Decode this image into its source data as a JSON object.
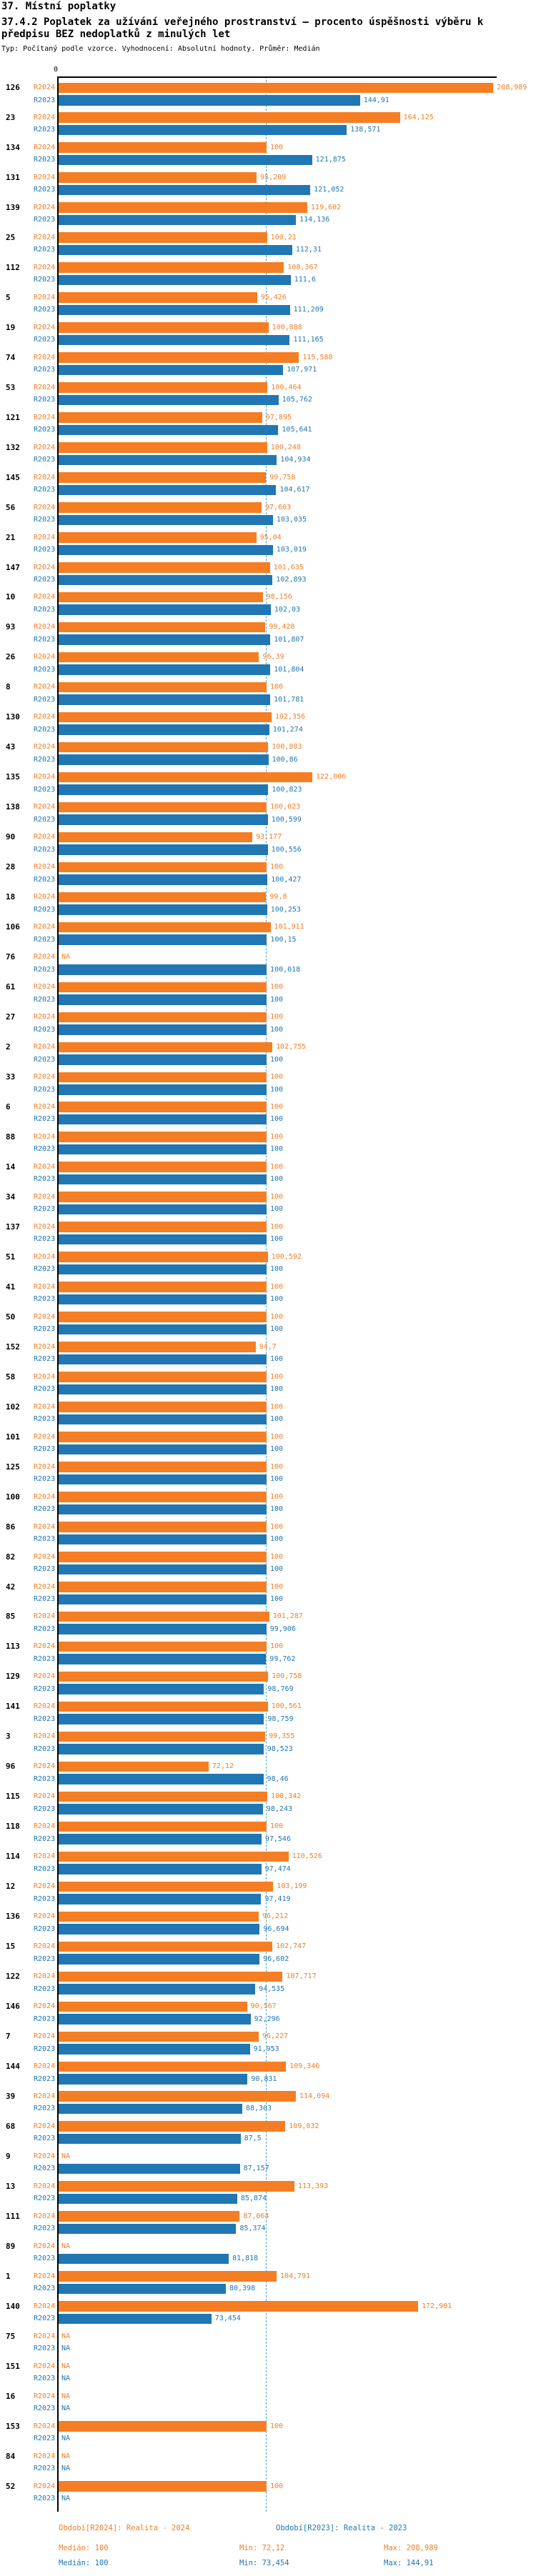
{
  "header": {
    "line1": "37. Místní poplatky",
    "line2": "37.4.2 Poplatek za užívání veřejného prostranství – procento úspěšnosti výběru k",
    "line3": "předpisu BEZ nedoplatků z minulých let",
    "line4": "Typ: Počítaný podle vzorce. Vyhodnocení: Absolutní hodnoty. Průměr: Medián"
  },
  "chart_data": {
    "type": "bar",
    "orientation": "horizontal",
    "decimal_style": "czech-comma",
    "na_text": "NA",
    "series_labels": [
      "R2024",
      "R2023"
    ],
    "colors": {
      "r2024": "#F57E25",
      "r2023": "#2077B4",
      "median_line": "#4BA3C7",
      "axis": "#000000"
    },
    "axis": {
      "origin_label": "0",
      "median_value": 100,
      "xlim": [
        0,
        214
      ],
      "grid": false
    },
    "groups": [
      {
        "id": "126",
        "r2024": "208,989",
        "r2023": "144,91"
      },
      {
        "id": "23",
        "r2024": "164,125",
        "r2023": "138,571"
      },
      {
        "id": "134",
        "r2024": "100",
        "r2023": "121,875"
      },
      {
        "id": "131",
        "r2024": "95,209",
        "r2023": "121,052"
      },
      {
        "id": "139",
        "r2024": "119,602",
        "r2023": "114,136"
      },
      {
        "id": "25",
        "r2024": "100,21",
        "r2023": "112,31"
      },
      {
        "id": "112",
        "r2024": "108,367",
        "r2023": "111,6"
      },
      {
        "id": "5",
        "r2024": "95,426",
        "r2023": "111,209"
      },
      {
        "id": "19",
        "r2024": "100,888",
        "r2023": "111,165"
      },
      {
        "id": "74",
        "r2024": "115,588",
        "r2023": "107,971"
      },
      {
        "id": "53",
        "r2024": "100,464",
        "r2023": "105,762"
      },
      {
        "id": "121",
        "r2024": "97,895",
        "r2023": "105,641"
      },
      {
        "id": "132",
        "r2024": "100,248",
        "r2023": "104,934"
      },
      {
        "id": "145",
        "r2024": "99,758",
        "r2023": "104,617"
      },
      {
        "id": "56",
        "r2024": "97,603",
        "r2023": "103,035"
      },
      {
        "id": "21",
        "r2024": "95,04",
        "r2023": "103,019"
      },
      {
        "id": "147",
        "r2024": "101,635",
        "r2023": "102,893"
      },
      {
        "id": "10",
        "r2024": "98,156",
        "r2023": "102,03"
      },
      {
        "id": "93",
        "r2024": "99,428",
        "r2023": "101,807"
      },
      {
        "id": "26",
        "r2024": "96,39",
        "r2023": "101,804"
      },
      {
        "id": "8",
        "r2024": "100",
        "r2023": "101,781"
      },
      {
        "id": "130",
        "r2024": "102,356",
        "r2023": "101,274"
      },
      {
        "id": "43",
        "r2024": "100,803",
        "r2023": "100,86"
      },
      {
        "id": "135",
        "r2024": "122,006",
        "r2023": "100,823"
      },
      {
        "id": "138",
        "r2024": "100,023",
        "r2023": "100,599"
      },
      {
        "id": "90",
        "r2024": "93,177",
        "r2023": "100,556"
      },
      {
        "id": "28",
        "r2024": "100",
        "r2023": "100,427"
      },
      {
        "id": "18",
        "r2024": "99,8",
        "r2023": "100,253"
      },
      {
        "id": "106",
        "r2024": "101,911",
        "r2023": "100,15"
      },
      {
        "id": "76",
        "r2024": "NA",
        "r2023": "100,018"
      },
      {
        "id": "61",
        "r2024": "100",
        "r2023": "100"
      },
      {
        "id": "27",
        "r2024": "100",
        "r2023": "100"
      },
      {
        "id": "2",
        "r2024": "102,755",
        "r2023": "100"
      },
      {
        "id": "33",
        "r2024": "100",
        "r2023": "100"
      },
      {
        "id": "6",
        "r2024": "100",
        "r2023": "100"
      },
      {
        "id": "88",
        "r2024": "100",
        "r2023": "100"
      },
      {
        "id": "14",
        "r2024": "100",
        "r2023": "100"
      },
      {
        "id": "34",
        "r2024": "100",
        "r2023": "100"
      },
      {
        "id": "137",
        "r2024": "100",
        "r2023": "100"
      },
      {
        "id": "51",
        "r2024": "100,592",
        "r2023": "100"
      },
      {
        "id": "41",
        "r2024": "100",
        "r2023": "100"
      },
      {
        "id": "50",
        "r2024": "100",
        "r2023": "100"
      },
      {
        "id": "152",
        "r2024": "94,7",
        "r2023": "100"
      },
      {
        "id": "58",
        "r2024": "100",
        "r2023": "100"
      },
      {
        "id": "102",
        "r2024": "100",
        "r2023": "100"
      },
      {
        "id": "101",
        "r2024": "100",
        "r2023": "100"
      },
      {
        "id": "125",
        "r2024": "100",
        "r2023": "100"
      },
      {
        "id": "100",
        "r2024": "100",
        "r2023": "100"
      },
      {
        "id": "86",
        "r2024": "100",
        "r2023": "100"
      },
      {
        "id": "82",
        "r2024": "100",
        "r2023": "100"
      },
      {
        "id": "42",
        "r2024": "100",
        "r2023": "100"
      },
      {
        "id": "85",
        "r2024": "101,287",
        "r2023": "99,906"
      },
      {
        "id": "113",
        "r2024": "100",
        "r2023": "99,762"
      },
      {
        "id": "129",
        "r2024": "100,758",
        "r2023": "98,769"
      },
      {
        "id": "141",
        "r2024": "100,561",
        "r2023": "98,759"
      },
      {
        "id": "3",
        "r2024": "99,355",
        "r2023": "98,523"
      },
      {
        "id": "96",
        "r2024": "72,12",
        "r2023": "98,46"
      },
      {
        "id": "115",
        "r2024": "100,342",
        "r2023": "98,243"
      },
      {
        "id": "118",
        "r2024": "100",
        "r2023": "97,546"
      },
      {
        "id": "114",
        "r2024": "110,526",
        "r2023": "97,474"
      },
      {
        "id": "12",
        "r2024": "103,199",
        "r2023": "97,419"
      },
      {
        "id": "136",
        "r2024": "96,212",
        "r2023": "96,694"
      },
      {
        "id": "15",
        "r2024": "102,747",
        "r2023": "96,602"
      },
      {
        "id": "122",
        "r2024": "107,717",
        "r2023": "94,535"
      },
      {
        "id": "146",
        "r2024": "90,567",
        "r2023": "92,296"
      },
      {
        "id": "7",
        "r2024": "96,227",
        "r2023": "91,953"
      },
      {
        "id": "144",
        "r2024": "109,346",
        "r2023": "90,831"
      },
      {
        "id": "39",
        "r2024": "114,094",
        "r2023": "88,303"
      },
      {
        "id": "68",
        "r2024": "109,032",
        "r2023": "87,5"
      },
      {
        "id": "9",
        "r2024": "NA",
        "r2023": "87,157"
      },
      {
        "id": "13",
        "r2024": "113,393",
        "r2023": "85,874"
      },
      {
        "id": "111",
        "r2024": "87,064",
        "r2023": "85,374"
      },
      {
        "id": "89",
        "r2024": "NA",
        "r2023": "81,818"
      },
      {
        "id": "1",
        "r2024": "104,791",
        "r2023": "80,398"
      },
      {
        "id": "140",
        "r2024": "172,901",
        "r2023": "73,454"
      },
      {
        "id": "75",
        "r2024": "NA",
        "r2023": "NA"
      },
      {
        "id": "151",
        "r2024": "NA",
        "r2023": "NA"
      },
      {
        "id": "16",
        "r2024": "NA",
        "r2023": "NA"
      },
      {
        "id": "153",
        "r2024": "100",
        "r2023": "NA"
      },
      {
        "id": "84",
        "r2024": "NA",
        "r2023": "NA"
      },
      {
        "id": "52",
        "r2024": "100",
        "r2023": "NA"
      }
    ],
    "legend": {
      "r2024": "Období[R2024]: Realita - 2024",
      "r2023": "Období[R2023]: Realita - 2023",
      "position": "bottom"
    },
    "stats": {
      "r2024": {
        "median_label": "Medián: 100",
        "min_label": "Min: 72,12",
        "max_label": "Max: 208,989"
      },
      "r2023": {
        "median_label": "Medián: 100",
        "min_label": "Min: 73,454",
        "max_label": "Max: 144,91"
      }
    }
  }
}
